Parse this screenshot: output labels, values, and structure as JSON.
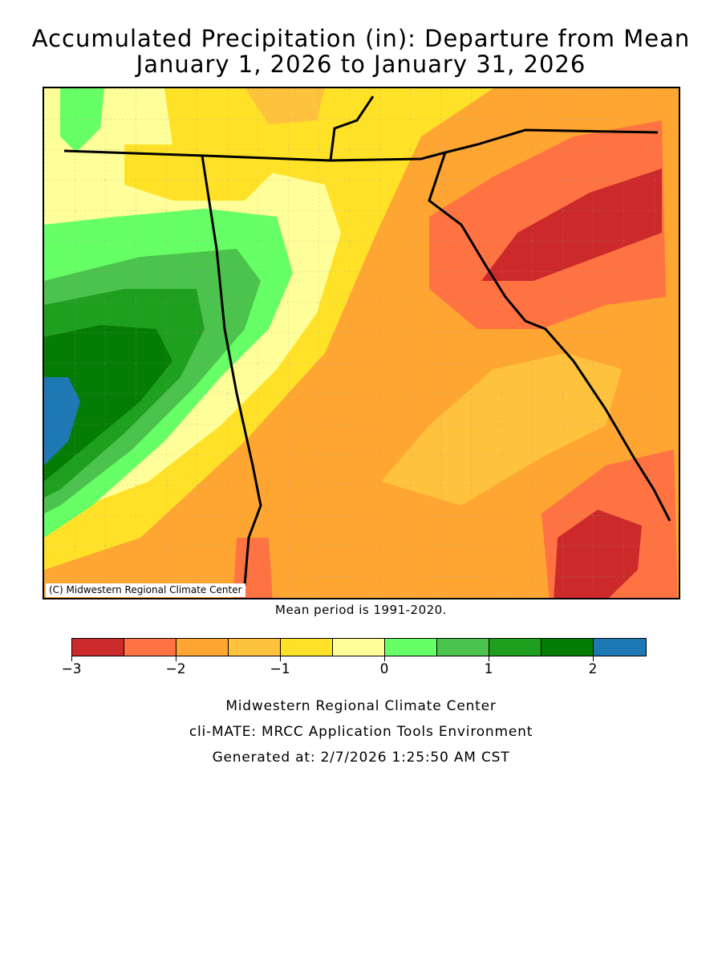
{
  "title_line1": "Accumulated Precipitation (in): Departure from Mean",
  "title_line2": "January 1, 2026 to January 31, 2026",
  "copyright": "(C) Midwestern Regional Climate Center",
  "mean_period_note": "Mean period is 1991-2020.",
  "legend": {
    "bins": [
      {
        "from": -3.0,
        "to": -2.5,
        "color": "#cc2a2a"
      },
      {
        "from": -2.5,
        "to": -2.0,
        "color": "#ff7342"
      },
      {
        "from": -2.0,
        "to": -1.5,
        "color": "#ffa632"
      },
      {
        "from": -1.5,
        "to": -1.0,
        "color": "#ffc23c"
      },
      {
        "from": -1.0,
        "to": -0.5,
        "color": "#ffe228"
      },
      {
        "from": -0.5,
        "to": 0.0,
        "color": "#ffff99"
      },
      {
        "from": 0.0,
        "to": 0.5,
        "color": "#66ff66"
      },
      {
        "from": 0.5,
        "to": 1.0,
        "color": "#4cc34c"
      },
      {
        "from": 1.0,
        "to": 1.5,
        "color": "#1ea01e"
      },
      {
        "from": 1.5,
        "to": 2.0,
        "color": "#057d05"
      },
      {
        "from": 2.0,
        "to": 2.5,
        "color": "#1e78b4"
      }
    ],
    "tick_labels": [
      "-3",
      "-2",
      "-1",
      "0",
      "1",
      "2"
    ]
  },
  "footer": {
    "line1": "Midwestern Regional Climate Center",
    "line2": "cli-MATE: MRCC Application Tools Environment",
    "line3": "Generated at: 2/7/2026 1:25:50 AM CST"
  }
}
